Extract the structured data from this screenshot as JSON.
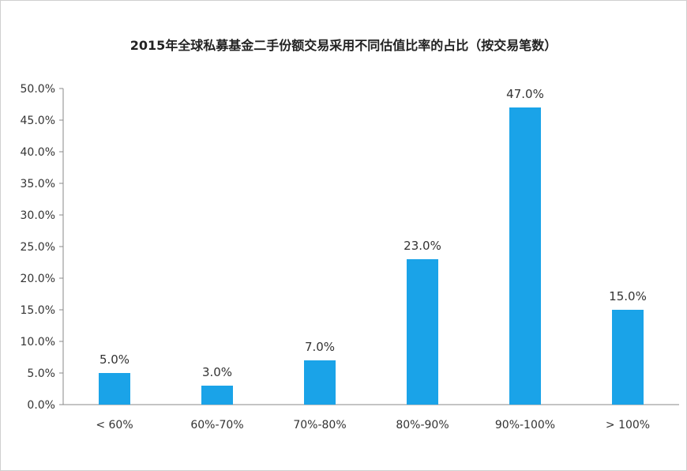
{
  "chart_data": {
    "type": "bar",
    "title": "2015年全球私募基金二手份额交易采用不同估值比率的占比（按交易笔数）",
    "categories": [
      "< 60%",
      "60%-70%",
      "70%-80%",
      "80%-90%",
      "90%-100%",
      "> 100%"
    ],
    "values": [
      5.0,
      3.0,
      7.0,
      23.0,
      47.0,
      15.0
    ],
    "value_labels": [
      "5.0%",
      "3.0%",
      "7.0%",
      "23.0%",
      "47.0%",
      "15.0%"
    ],
    "yticks": [
      "0.0%",
      "5.0%",
      "10.0%",
      "15.0%",
      "20.0%",
      "25.0%",
      "30.0%",
      "35.0%",
      "40.0%",
      "45.0%",
      "50.0%"
    ],
    "ylim": [
      0,
      50
    ],
    "bar_color": "#1aa3e8",
    "grid": false,
    "legend": "none"
  }
}
